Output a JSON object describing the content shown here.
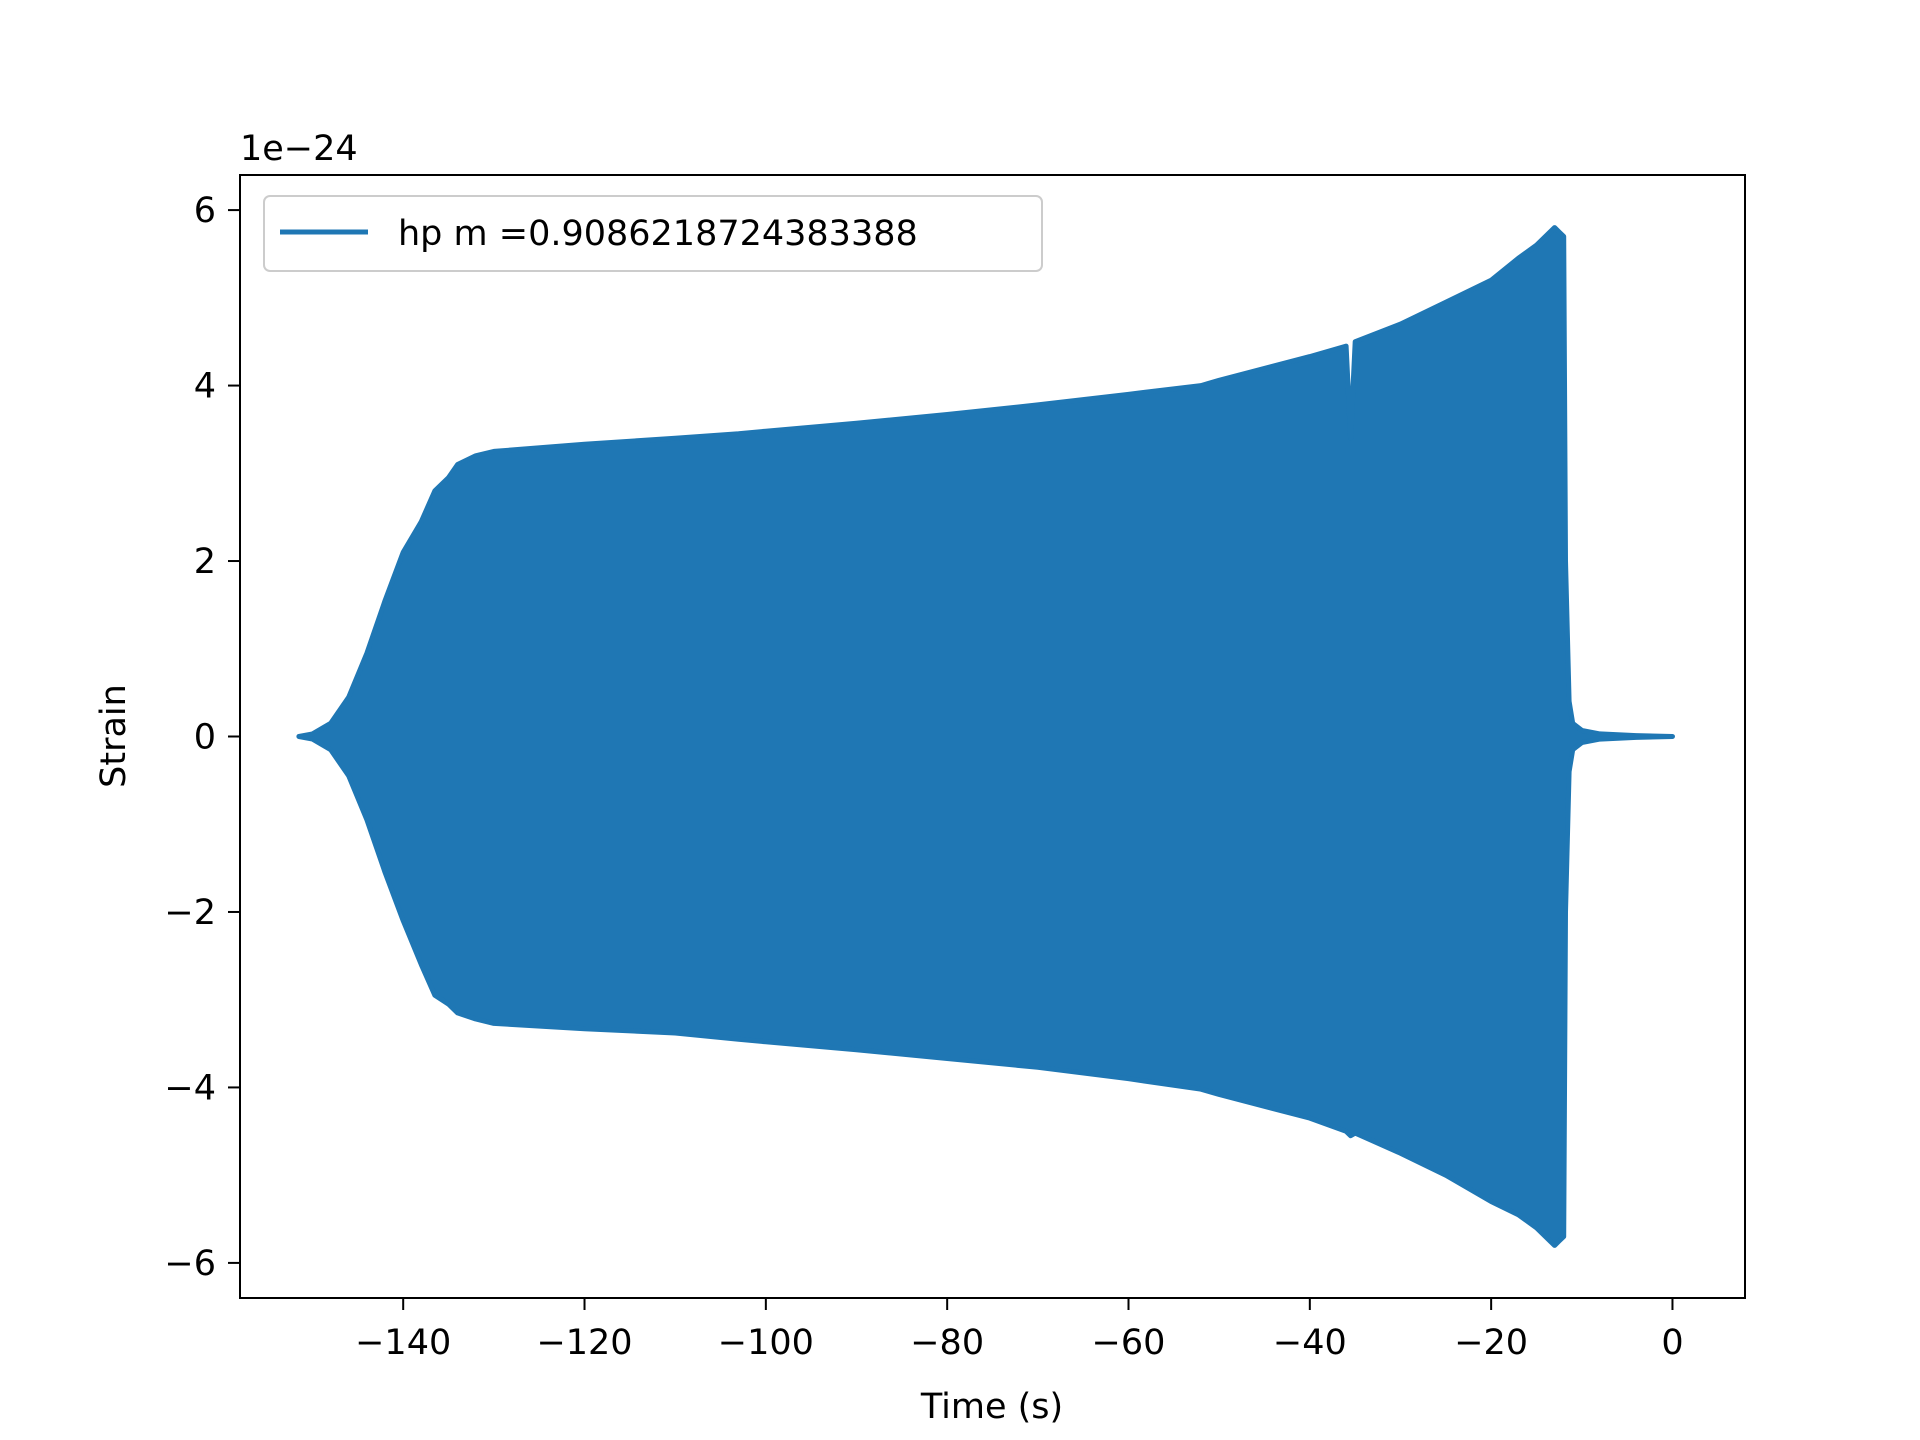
{
  "chart_data": {
    "type": "line",
    "title": "",
    "xlabel": "Time (s)",
    "ylabel": "Strain",
    "offset_text": "1e−24",
    "xlim": [
      -158,
      8
    ],
    "ylim": [
      -6.4,
      6.4
    ],
    "xticks": [
      -140,
      -120,
      -100,
      -80,
      -60,
      -40,
      -20,
      0
    ],
    "xtick_labels": [
      "−140",
      "−120",
      "−100",
      "−80",
      "−60",
      "−40",
      "−20",
      "0"
    ],
    "yticks": [
      -6,
      -4,
      -2,
      0,
      2,
      4,
      6
    ],
    "ytick_labels": [
      "−6",
      "−4",
      "−2",
      "0",
      "2",
      "4",
      "6"
    ],
    "legend_position": "upper-left",
    "grid": false,
    "series": [
      {
        "name": "hp m =0.9086218724383388",
        "color": "#1f77b4",
        "envelope": {
          "x": [
            -151.5,
            -150,
            -148,
            -146,
            -144,
            -142,
            -140,
            -138,
            -136.5,
            -135,
            -134,
            -132,
            -130,
            -120,
            -110,
            -103,
            -100,
            -90,
            -80,
            -70,
            -60,
            -52,
            -50,
            -40,
            -36,
            -35.5,
            -35,
            -30,
            -25,
            -20,
            -17,
            -15,
            -13,
            -12.5,
            -12,
            -11.8,
            -11.4,
            -11,
            -10,
            -8,
            -4,
            0
          ],
          "upper": [
            0.0,
            0.03,
            0.15,
            0.45,
            0.95,
            1.55,
            2.1,
            2.45,
            2.8,
            2.95,
            3.1,
            3.2,
            3.25,
            3.33,
            3.4,
            3.45,
            3.48,
            3.57,
            3.67,
            3.78,
            3.9,
            4.0,
            4.06,
            4.33,
            4.45,
            3.4,
            4.5,
            4.7,
            4.95,
            5.2,
            5.45,
            5.6,
            5.8,
            5.75,
            5.7,
            2.0,
            0.4,
            0.15,
            0.07,
            0.03,
            0.01,
            0.0
          ],
          "lower": [
            0.0,
            -0.03,
            -0.15,
            -0.45,
            -0.95,
            -1.55,
            -2.1,
            -2.6,
            -2.95,
            -3.05,
            -3.15,
            -3.22,
            -3.27,
            -3.33,
            -3.38,
            -3.45,
            -3.48,
            -3.57,
            -3.67,
            -3.77,
            -3.9,
            -4.02,
            -4.08,
            -4.35,
            -4.5,
            -4.55,
            -4.52,
            -4.75,
            -5.0,
            -5.3,
            -5.45,
            -5.6,
            -5.8,
            -5.75,
            -5.7,
            -2.0,
            -0.4,
            -0.15,
            -0.07,
            -0.03,
            -0.01,
            0.0
          ]
        }
      }
    ]
  }
}
